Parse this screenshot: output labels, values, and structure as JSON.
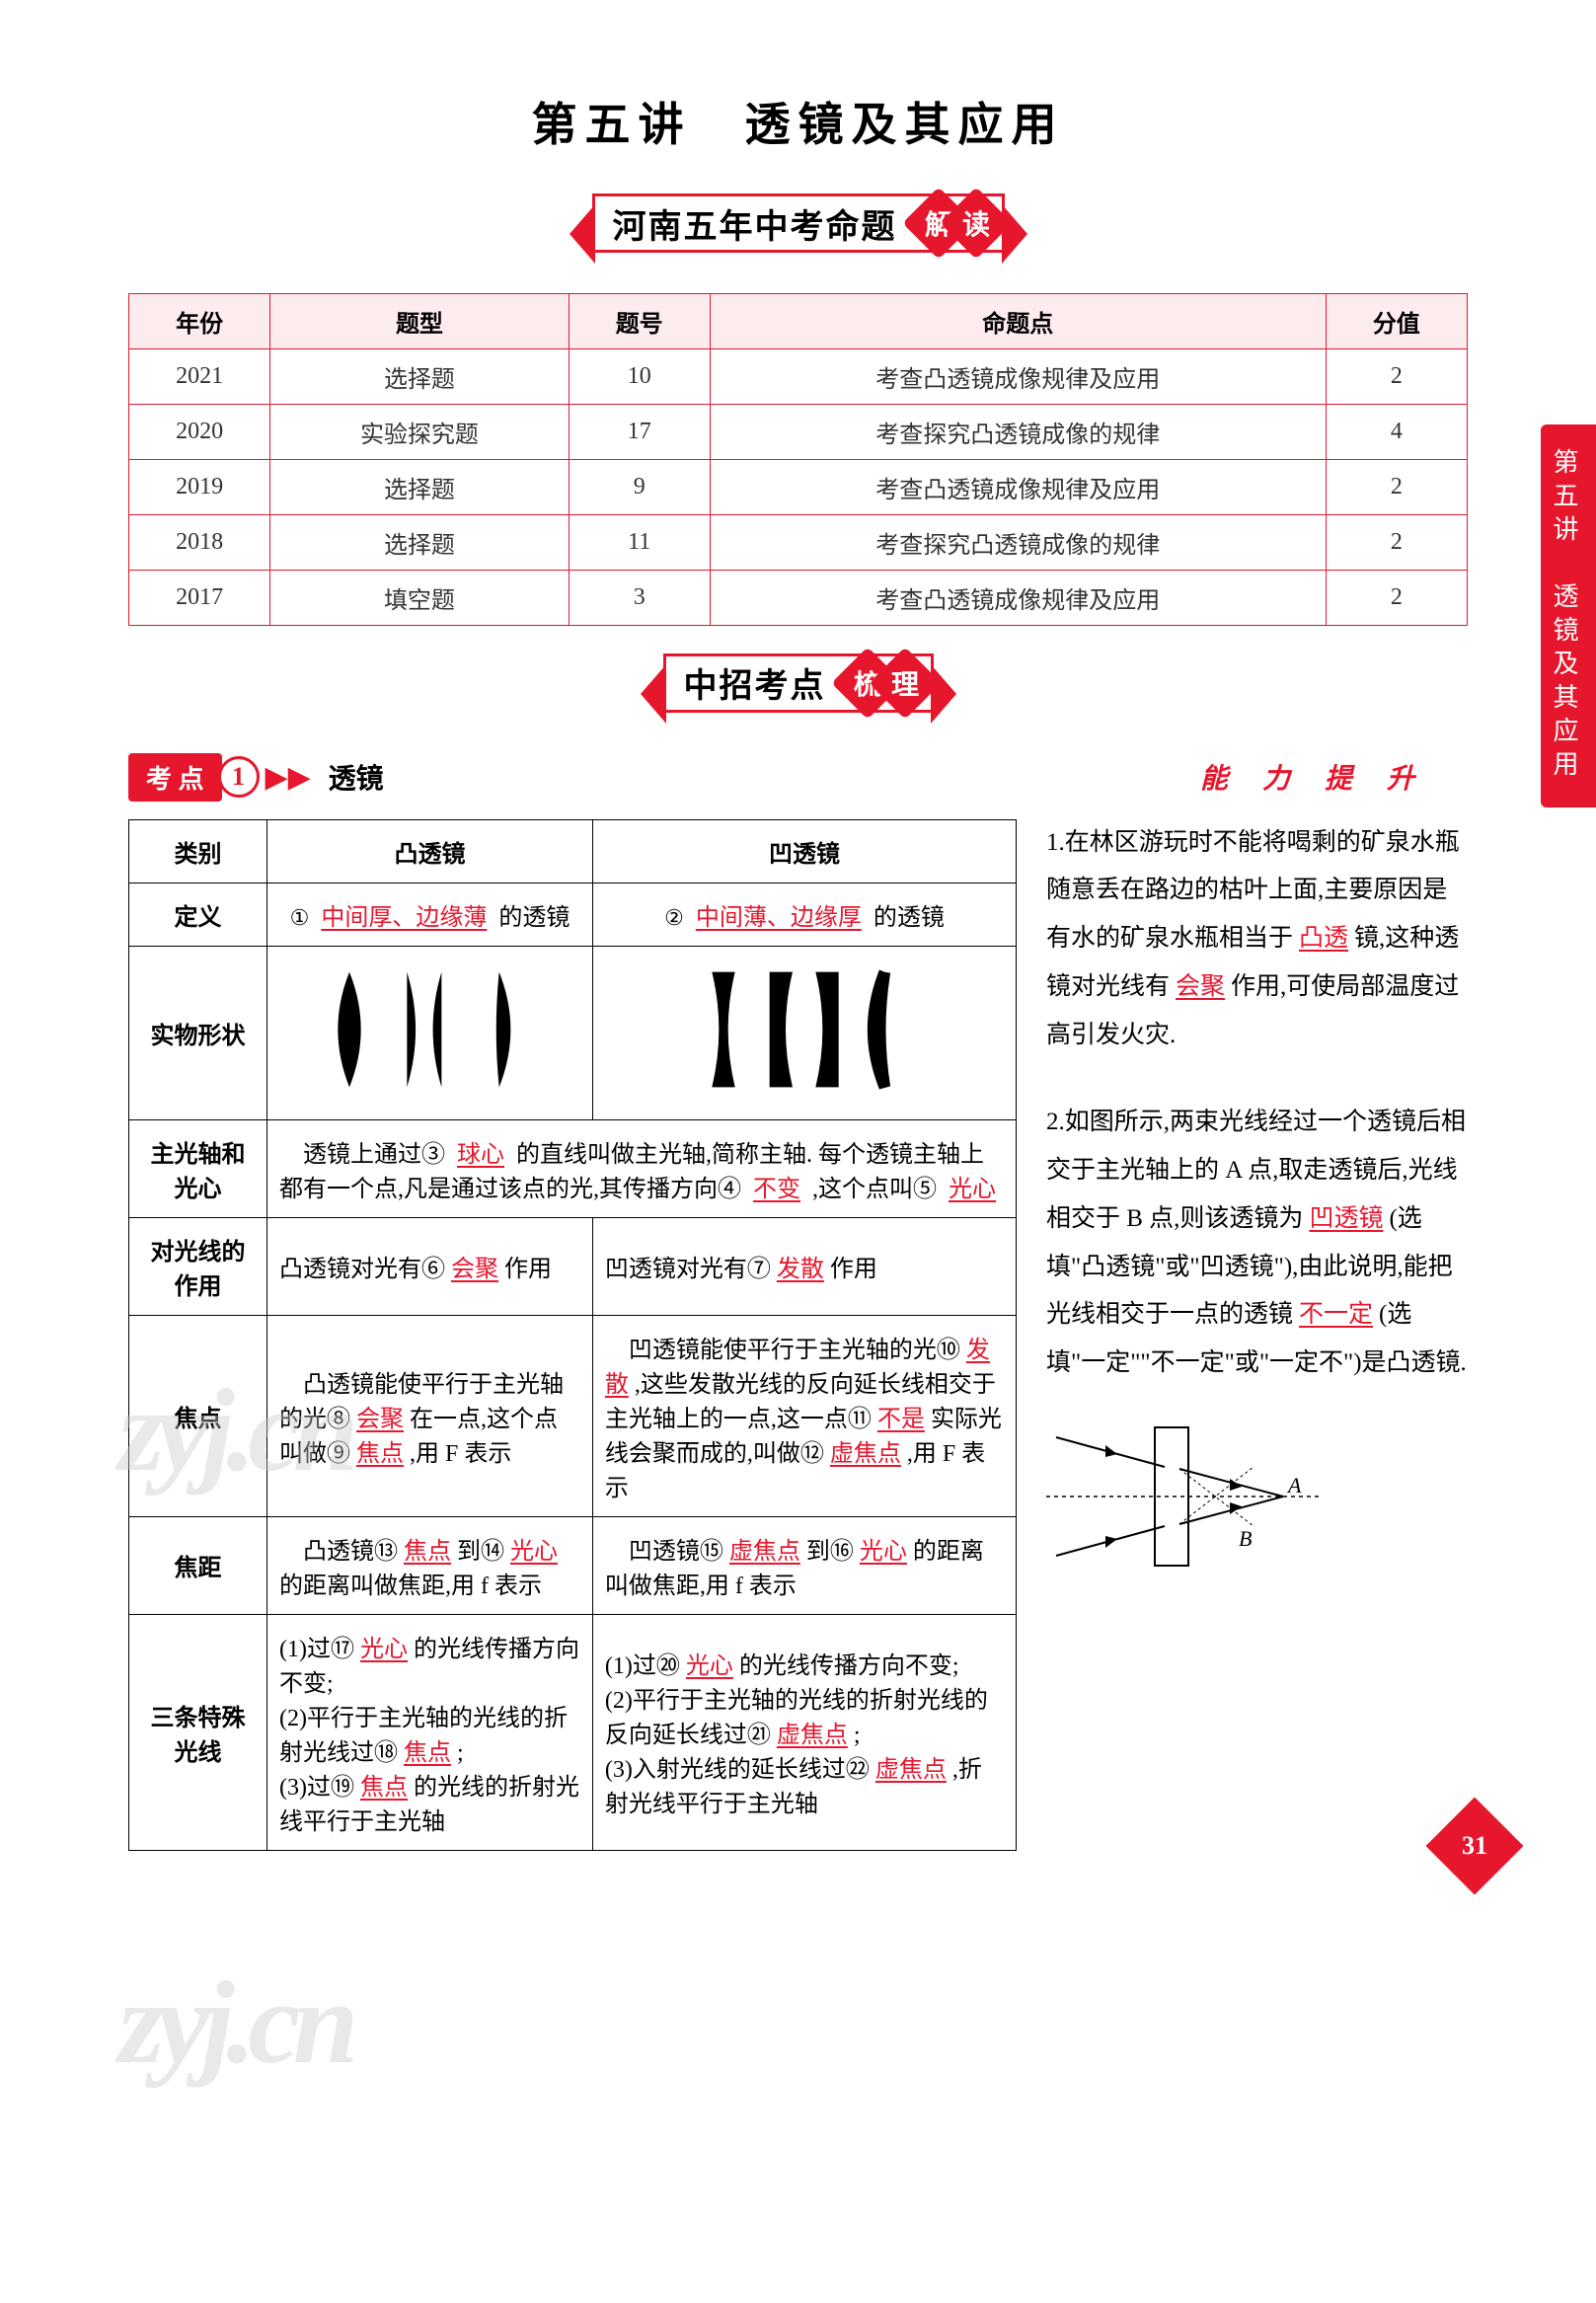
{
  "page_number": "31",
  "title": "第五讲　透镜及其应用",
  "banner1": {
    "main": "河南五年中考命题",
    "badge1": "解",
    "badge2": "读"
  },
  "banner2": {
    "main": "中招考点",
    "badge1": "梳",
    "badge2": "理"
  },
  "side_tab": "第五讲　透镜及其应用",
  "exam_table": {
    "headers": [
      "年份",
      "题型",
      "题号",
      "命题点",
      "分值"
    ],
    "rows": [
      [
        "2021",
        "选择题",
        "10",
        "考查凸透镜成像规律及应用",
        "2"
      ],
      [
        "2020",
        "实验探究题",
        "17",
        "考查探究凸透镜成像的规律",
        "4"
      ],
      [
        "2019",
        "选择题",
        "9",
        "考查凸透镜成像规律及应用",
        "2"
      ],
      [
        "2018",
        "选择题",
        "11",
        "考查探究凸透镜成像的规律",
        "2"
      ],
      [
        "2017",
        "填空题",
        "3",
        "考查凸透镜成像规律及应用",
        "2"
      ]
    ],
    "header_bg": "#fdecee",
    "border_color": "#e6162d"
  },
  "kaodian": {
    "label": "考 点",
    "num": "1",
    "title": "透镜"
  },
  "nengli_label": "能 力 提 升",
  "lens_table_headers": {
    "cat": "类别",
    "convex": "凸透镜",
    "concave": "凹透镜"
  },
  "rows": {
    "def": {
      "label": "定义",
      "c1_pre": "①",
      "c1_ans": "中间厚、边缘薄",
      "c1_post": "的透镜",
      "c2_pre": "②",
      "c2_ans": "中间薄、边缘厚",
      "c2_post": "的透镜"
    },
    "shape": {
      "label": "实物形状"
    },
    "axis": {
      "label": "主光轴和光心",
      "t1": "　透镜上通过③",
      "a1": "球心",
      "t2": "的直线叫做主光轴,简称主轴. 每个透镜主轴上都有一个点,凡是通过该点的光,其传播方向④",
      "a2": "不变",
      "t3": ",这个点叫⑤",
      "a3": "光心"
    },
    "effect": {
      "label": "对光线的作用",
      "c1_t1": "凸透镜对光有⑥",
      "c1_a1": "会聚",
      "c1_t2": "作用",
      "c2_t1": "凹透镜对光有⑦",
      "c2_a1": "发散",
      "c2_t2": "作用"
    },
    "focus": {
      "label": "焦点",
      "c1_t1": "　凸透镜能使平行于主光轴的光⑧",
      "c1_a1": "会聚",
      "c1_t2": "在一点,这个点叫做⑨",
      "c1_a2": "焦点",
      "c1_t3": ",用 F 表示",
      "c2_t1": "　凹透镜能使平行于主光轴的光⑩",
      "c2_a1": "发散",
      "c2_t2": ",这些发散光线的反向延长线相交于主光轴上的一点,这一点⑪",
      "c2_a2": "不是",
      "c2_t3": "实际光线会聚而成的,叫做⑫",
      "c2_a3": "虚焦点",
      "c2_t4": ",用 F 表示"
    },
    "flen": {
      "label": "焦距",
      "c1_t1": "　凸透镜⑬",
      "c1_a1": "焦点",
      "c1_t2": "到⑭",
      "c1_a2": "光心",
      "c1_t3": "的距离叫做焦距,用 f 表示",
      "c2_t1": "　凹透镜⑮",
      "c2_a1": "虚焦点",
      "c2_t2": "到⑯",
      "c2_a2": "光心",
      "c2_t3": "的距离叫做焦距,用 f 表示"
    },
    "rays": {
      "label": "三条特殊光线",
      "c1_t1": "(1)过⑰",
      "c1_a1": "光心",
      "c1_t1b": "的光线传播方向不变;",
      "c1_t2": "(2)平行于主光轴的光线的折射光线过⑱",
      "c1_a2": "焦点",
      "c1_t2b": ";",
      "c1_t3": "(3)过⑲",
      "c1_a3": "焦点",
      "c1_t3b": "的光线的折射光线平行于主光轴",
      "c2_t1": "(1)过⑳",
      "c2_a1": "光心",
      "c2_t1b": "的光线传播方向不变;",
      "c2_t2": "(2)平行于主光轴的光线的折射光线的反向延长线过㉑",
      "c2_a2": "虚焦点",
      "c2_t2b": ";",
      "c2_t3": "(3)入射光线的延长线过㉒",
      "c2_a3": "虚焦点",
      "c2_t3b": ",折射光线平行于主光轴"
    }
  },
  "side_q1": {
    "num": "1.",
    "t1": "在林区游玩时不能将喝剩的矿泉水瓶随意丢在路边的枯叶上面,主要原因是有水的矿泉水瓶相当于",
    "a1": "凸透",
    "t2": "镜,这种透镜对光线有",
    "a2": "会聚",
    "t3": "作用,可使局部温度过高引发火灾."
  },
  "side_q2": {
    "num": "2.",
    "t1": "如图所示,两束光线经过一个透镜后相交于主光轴上的 A 点,取走透镜后,光线相交于 B 点,则该透镜为",
    "a1": "凹透镜",
    "t2": "(选填\"凸透镜\"或\"凹透镜\"),由此说明,能把光线相交于一点的透镜",
    "a2": "不一定",
    "t3": "(选填\"一定\"\"不一定\"或\"一定不\")是凸透镜.",
    "label_A": "A",
    "label_B": "B"
  },
  "watermark": "zyj.cn",
  "colors": {
    "accent": "#e6162d",
    "answer": "#e6162d"
  }
}
